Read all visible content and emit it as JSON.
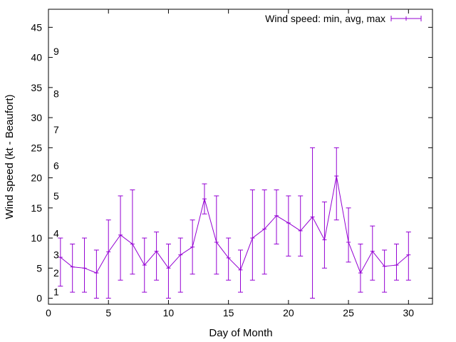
{
  "chart_data": {
    "type": "line",
    "title": "",
    "xlabel": "Day of Month",
    "ylabel": "Wind speed (kt - Beaufort)",
    "xlim": [
      0,
      32
    ],
    "ylim": [
      -1,
      48
    ],
    "xticks": [
      0,
      5,
      10,
      15,
      20,
      25,
      30
    ],
    "yticks": [
      0,
      5,
      10,
      15,
      20,
      25,
      30,
      35,
      40,
      45
    ],
    "grid": false,
    "legend_position": "top-right",
    "series": [
      {
        "name": "Wind speed: min, avg, max",
        "color": "#9400d3",
        "x": [
          1,
          2,
          3,
          4,
          5,
          6,
          7,
          8,
          9,
          10,
          11,
          12,
          13,
          14,
          15,
          16,
          17,
          18,
          19,
          20,
          21,
          22,
          23,
          24,
          25,
          26,
          27,
          28,
          29,
          30
        ],
        "avg": [
          6.8,
          5.2,
          5.0,
          4.2,
          7.7,
          10.5,
          9.0,
          5.5,
          7.8,
          5.0,
          7.2,
          8.5,
          16.5,
          9.3,
          6.7,
          4.7,
          10.0,
          11.5,
          13.7,
          12.5,
          11.2,
          13.5,
          9.7,
          20.3,
          9.3,
          4.2,
          7.8,
          5.3,
          5.5,
          7.2
        ],
        "min": [
          2,
          1,
          1,
          0,
          0,
          3,
          4,
          1,
          3,
          0,
          1,
          4,
          14,
          4,
          3,
          1,
          3,
          4,
          9,
          7,
          7,
          0,
          5,
          13,
          6,
          1,
          3,
          1,
          3,
          3
        ],
        "max": [
          10,
          9,
          10,
          8,
          13,
          17,
          18,
          10,
          11,
          9,
          10,
          13,
          19,
          17,
          10,
          8,
          18,
          18,
          18,
          17,
          17,
          25,
          16,
          25,
          15,
          9,
          12,
          8,
          9,
          11
        ]
      }
    ],
    "annotations": [
      {
        "text": "1",
        "y": 1.1
      },
      {
        "text": "2",
        "y": 4.2
      },
      {
        "text": "3",
        "y": 7.2
      },
      {
        "text": "4",
        "y": 10.8
      },
      {
        "text": "5",
        "y": 17.0
      },
      {
        "text": "6",
        "y": 22.0
      },
      {
        "text": "7",
        "y": 28.0
      },
      {
        "text": "8",
        "y": 34.0
      },
      {
        "text": "9",
        "y": 41.0
      }
    ]
  }
}
